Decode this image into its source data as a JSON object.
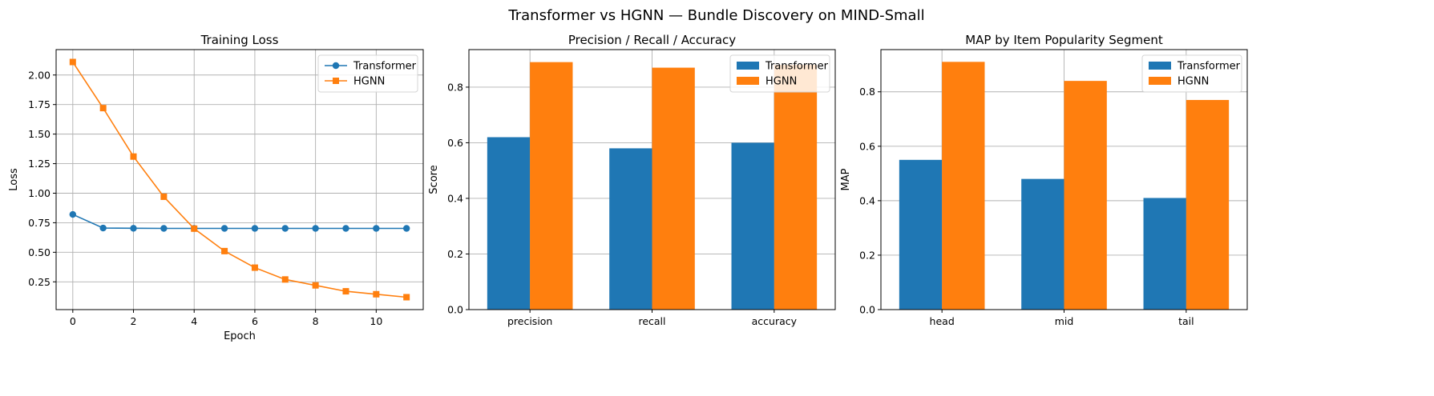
{
  "figure": {
    "suptitle": "Transformer vs HGNN — Bundle Discovery on MIND-Small"
  },
  "colors": {
    "transformer": "#1f77b4",
    "hgnn": "#ff7f0e",
    "grid": "#b0b0b0",
    "axis": "#000000"
  },
  "chart_data": [
    {
      "type": "line",
      "title": "Training Loss",
      "xlabel": "Epoch",
      "ylabel": "Loss",
      "x": [
        0,
        1,
        2,
        3,
        4,
        5,
        6,
        7,
        8,
        9,
        10,
        11
      ],
      "xlim": [
        -0.55,
        11.55
      ],
      "ylim": [
        0.015,
        2.215
      ],
      "xticks": [
        0,
        2,
        4,
        6,
        8,
        10
      ],
      "yticks": [
        0.25,
        0.5,
        0.75,
        1.0,
        1.25,
        1.5,
        1.75,
        2.0
      ],
      "ytick_labels": [
        "0.25",
        "0.50",
        "0.75",
        "1.00",
        "1.25",
        "1.50",
        "1.75",
        "2.00"
      ],
      "grid": true,
      "legend_position": "upper right",
      "series": [
        {
          "name": "Transformer",
          "marker": "circle",
          "values": [
            0.82,
            0.705,
            0.703,
            0.702,
            0.702,
            0.702,
            0.702,
            0.702,
            0.702,
            0.702,
            0.702,
            0.702
          ]
        },
        {
          "name": "HGNN",
          "marker": "square",
          "values": [
            2.11,
            1.72,
            1.31,
            0.97,
            0.7,
            0.51,
            0.37,
            0.27,
            0.22,
            0.17,
            0.145,
            0.12
          ]
        }
      ]
    },
    {
      "type": "bar",
      "title": "Precision / Recall / Accuracy",
      "xlabel": "",
      "ylabel": "Score",
      "categories": [
        "precision",
        "recall",
        "accuracy"
      ],
      "ylim": [
        0,
        0.935
      ],
      "yticks": [
        0.0,
        0.2,
        0.4,
        0.6,
        0.8
      ],
      "ytick_labels": [
        "0.0",
        "0.2",
        "0.4",
        "0.6",
        "0.8"
      ],
      "grid": true,
      "legend_position": "upper right",
      "series": [
        {
          "name": "Transformer",
          "values": [
            0.62,
            0.58,
            0.6
          ]
        },
        {
          "name": "HGNN",
          "values": [
            0.89,
            0.87,
            0.88
          ]
        }
      ]
    },
    {
      "type": "bar",
      "title": "MAP by Item Popularity Segment",
      "xlabel": "",
      "ylabel": "MAP",
      "categories": [
        "head",
        "mid",
        "tail"
      ],
      "ylim": [
        0,
        0.955
      ],
      "yticks": [
        0.0,
        0.2,
        0.4,
        0.6,
        0.8
      ],
      "ytick_labels": [
        "0.0",
        "0.2",
        "0.4",
        "0.6",
        "0.8"
      ],
      "grid": true,
      "legend_position": "upper right",
      "series": [
        {
          "name": "Transformer",
          "values": [
            0.55,
            0.48,
            0.41
          ]
        },
        {
          "name": "HGNN",
          "values": [
            0.91,
            0.84,
            0.77
          ]
        }
      ]
    }
  ]
}
